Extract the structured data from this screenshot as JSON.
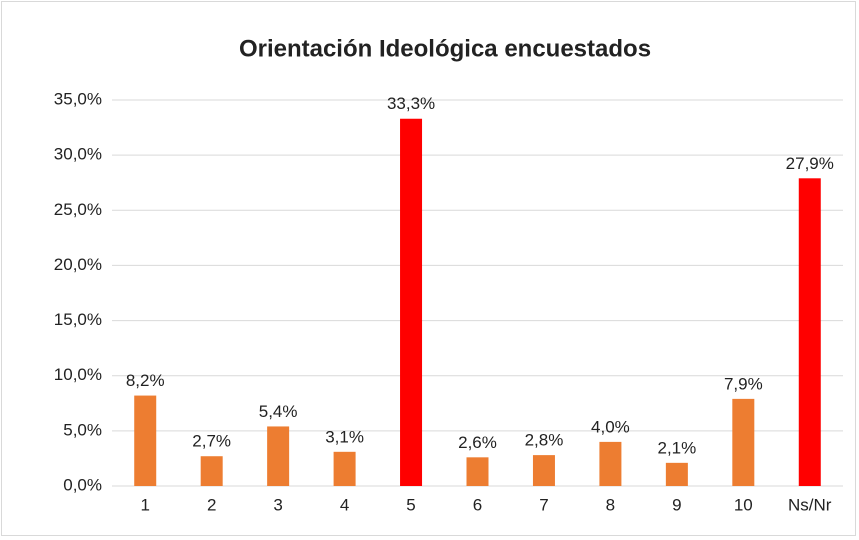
{
  "chart_data": {
    "type": "bar",
    "title": "Orientación Ideológica encuestados",
    "categories": [
      "1",
      "2",
      "3",
      "4",
      "5",
      "6",
      "7",
      "8",
      "9",
      "10",
      "Ns/Nr"
    ],
    "values": [
      8.2,
      2.7,
      5.4,
      3.1,
      33.3,
      2.6,
      2.8,
      4.0,
      2.1,
      7.9,
      27.9
    ],
    "value_labels": [
      "8,2%",
      "2,7%",
      "5,4%",
      "3,1%",
      "33,3%",
      "2,6%",
      "2,8%",
      "4,0%",
      "2,1%",
      "7,9%",
      "27,9%"
    ],
    "colors": [
      "#ed7d31",
      "#ed7d31",
      "#ed7d31",
      "#ed7d31",
      "#ff0000",
      "#ed7d31",
      "#ed7d31",
      "#ed7d31",
      "#ed7d31",
      "#ed7d31",
      "#ff0000"
    ],
    "ylim": [
      0,
      35
    ],
    "yticks": [
      {
        "value": 0,
        "label": "0,0%"
      },
      {
        "value": 5,
        "label": "5,0%"
      },
      {
        "value": 10,
        "label": "10,0%"
      },
      {
        "value": 15,
        "label": "15,0%"
      },
      {
        "value": 20,
        "label": "20,0%"
      },
      {
        "value": 25,
        "label": "25,0%"
      },
      {
        "value": 30,
        "label": "30,0%"
      },
      {
        "value": 35,
        "label": "35,0%"
      }
    ],
    "grid": true
  }
}
